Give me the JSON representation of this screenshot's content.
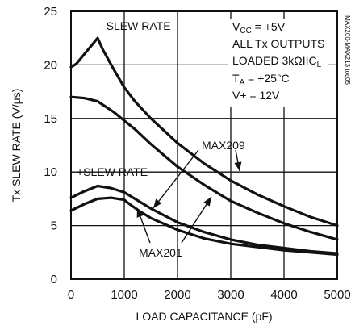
{
  "chart_data": {
    "type": "line",
    "xlabel": "LOAD CAPACITANCE (pF)",
    "ylabel": "Tx SLEW RATE (V/μs)",
    "xlim": [
      0,
      5000
    ],
    "ylim": [
      0,
      25
    ],
    "grid": true,
    "x_ticks": [
      "0",
      "1000",
      "2000",
      "3000",
      "4000",
      "5000"
    ],
    "y_ticks": [
      "0",
      "5",
      "10",
      "15",
      "20",
      "25"
    ],
    "series": [
      {
        "name": "-SLEW RATE MAX209",
        "x": [
          0,
          100,
          200,
          300,
          400,
          500,
          600,
          800,
          1000,
          1200,
          1500,
          2000,
          2500,
          3000,
          3500,
          4000,
          4500,
          5000
        ],
        "y": [
          19.8,
          20.1,
          20.7,
          21.3,
          21.9,
          22.5,
          21.4,
          19.6,
          17.9,
          16.6,
          15.0,
          12.7,
          10.8,
          9.2,
          7.9,
          6.8,
          5.8,
          5.0
        ]
      },
      {
        "name": "-SLEW RATE MAX201",
        "x": [
          0,
          250,
          500,
          800,
          1000,
          1200,
          1500,
          2000,
          2500,
          3000,
          3500,
          4000,
          4500,
          5000
        ],
        "y": [
          17.0,
          16.9,
          16.6,
          15.6,
          14.8,
          14.0,
          12.6,
          10.5,
          8.8,
          7.3,
          6.2,
          5.2,
          4.4,
          3.7
        ]
      },
      {
        "name": "+SLEW RATE MAX209",
        "x": [
          0,
          250,
          500,
          750,
          1000,
          1200,
          1500,
          2000,
          2500,
          3000,
          3500,
          4000,
          4500,
          5000
        ],
        "y": [
          7.6,
          8.2,
          8.7,
          8.5,
          8.1,
          7.5,
          6.6,
          5.3,
          4.4,
          3.7,
          3.2,
          2.9,
          2.6,
          2.4
        ]
      },
      {
        "name": "+SLEW RATE MAX201",
        "x": [
          0,
          250,
          500,
          750,
          1000,
          1100,
          1300,
          1500,
          2000,
          2500,
          3000,
          3500,
          4000,
          4500,
          5000
        ],
        "y": [
          6.4,
          7.0,
          7.5,
          7.6,
          7.4,
          7.0,
          6.3,
          5.7,
          4.6,
          3.8,
          3.3,
          3.0,
          2.7,
          2.5,
          2.3
        ]
      }
    ],
    "annotations": {
      "neg_slew": "-SLEW RATE",
      "pos_slew": "+SLEW RATE",
      "max209": "MAX209",
      "max201": "MAX201",
      "conditions": [
        "VCC = +5V",
        "ALL Tx OUTPUTS",
        "LOADED 3kΩIICL",
        "TA = +25°C",
        "V+ = 12V"
      ]
    },
    "figure_id": "MAX200-MAX213 toc05"
  }
}
